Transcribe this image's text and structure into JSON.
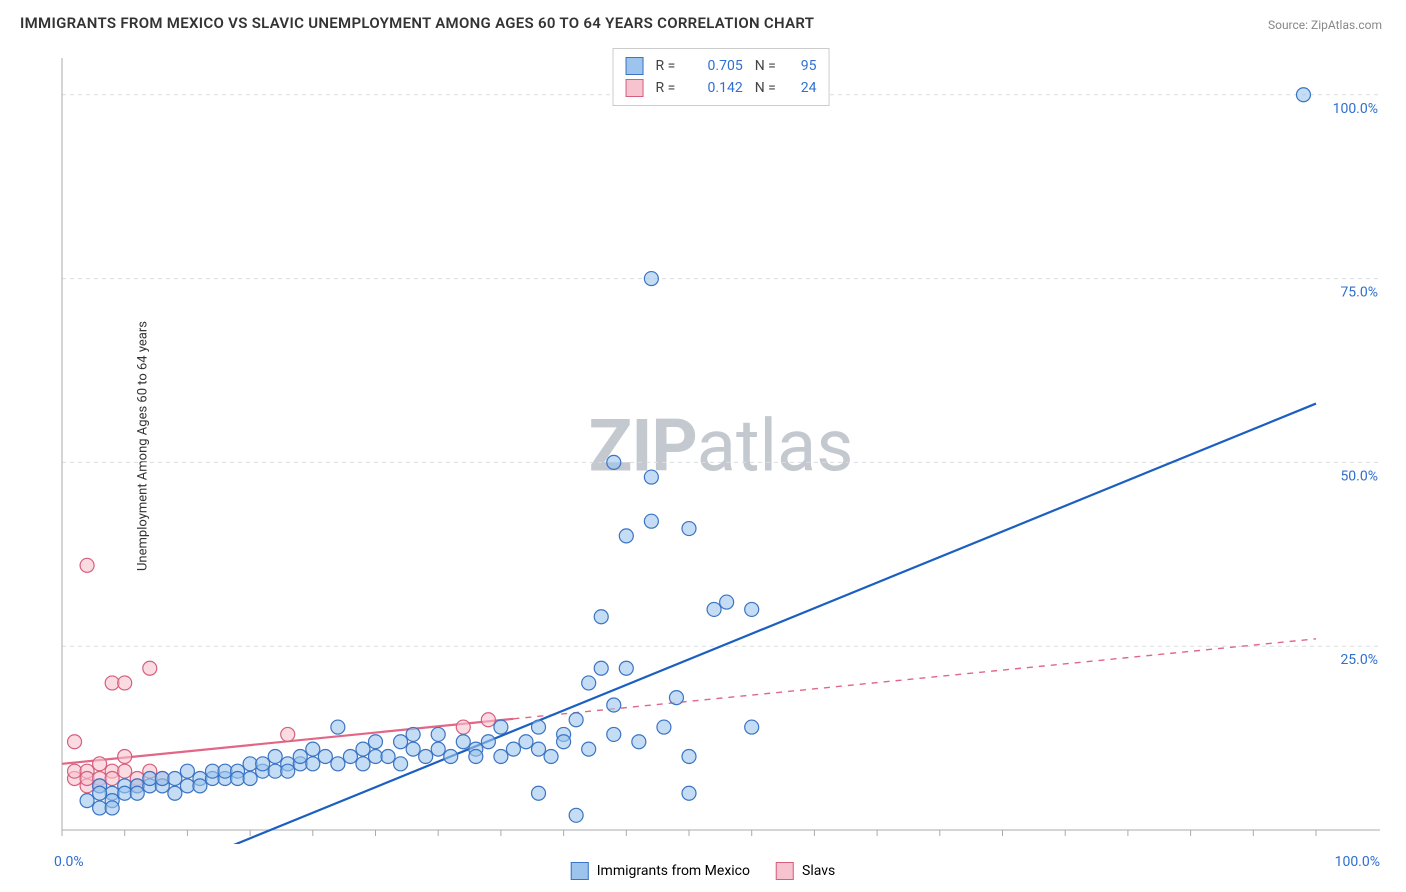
{
  "title": "IMMIGRANTS FROM MEXICO VS SLAVIC UNEMPLOYMENT AMONG AGES 60 TO 64 YEARS CORRELATION CHART",
  "source": "Source: ZipAtlas.com",
  "ylabel": "Unemployment Among Ages 60 to 64 years",
  "watermark_zip": "ZIP",
  "watermark_atlas": "atlas",
  "watermark_color": "#c4c9cf",
  "series": {
    "mexico": {
      "label": "Immigrants from Mexico",
      "r_value": "0.705",
      "n_value": "95",
      "point_fill": "#9cc4ed",
      "point_stroke": "#3b74c4",
      "line_color": "#1b5fc1",
      "line_start": [
        8,
        -6
      ],
      "line_end": [
        100,
        58
      ],
      "points": [
        [
          2,
          4
        ],
        [
          3,
          6
        ],
        [
          4,
          5
        ],
        [
          4,
          4
        ],
        [
          5,
          6
        ],
        [
          5,
          5
        ],
        [
          6,
          6
        ],
        [
          6,
          5
        ],
        [
          7,
          6
        ],
        [
          7,
          7
        ],
        [
          8,
          6
        ],
        [
          8,
          7
        ],
        [
          9,
          5
        ],
        [
          9,
          7
        ],
        [
          10,
          6
        ],
        [
          10,
          8
        ],
        [
          11,
          7
        ],
        [
          11,
          6
        ],
        [
          12,
          7
        ],
        [
          12,
          8
        ],
        [
          13,
          7
        ],
        [
          13,
          8
        ],
        [
          14,
          8
        ],
        [
          14,
          7
        ],
        [
          15,
          7
        ],
        [
          15,
          9
        ],
        [
          16,
          8
        ],
        [
          16,
          9
        ],
        [
          17,
          8
        ],
        [
          17,
          10
        ],
        [
          18,
          9
        ],
        [
          18,
          8
        ],
        [
          19,
          9
        ],
        [
          19,
          10
        ],
        [
          20,
          9
        ],
        [
          20,
          11
        ],
        [
          21,
          10
        ],
        [
          22,
          14
        ],
        [
          22,
          9
        ],
        [
          23,
          10
        ],
        [
          24,
          11
        ],
        [
          24,
          9
        ],
        [
          25,
          10
        ],
        [
          25,
          12
        ],
        [
          26,
          10
        ],
        [
          27,
          12
        ],
        [
          27,
          9
        ],
        [
          28,
          11
        ],
        [
          28,
          13
        ],
        [
          29,
          10
        ],
        [
          30,
          11
        ],
        [
          30,
          13
        ],
        [
          31,
          10
        ],
        [
          32,
          12
        ],
        [
          33,
          11
        ],
        [
          33,
          10
        ],
        [
          34,
          12
        ],
        [
          35,
          10
        ],
        [
          35,
          14
        ],
        [
          36,
          11
        ],
        [
          37,
          12
        ],
        [
          38,
          11
        ],
        [
          38,
          14
        ],
        [
          38,
          5
        ],
        [
          39,
          10
        ],
        [
          40,
          13
        ],
        [
          40,
          12
        ],
        [
          41,
          2
        ],
        [
          41,
          15
        ],
        [
          42,
          20
        ],
        [
          42,
          11
        ],
        [
          43,
          22
        ],
        [
          43,
          29
        ],
        [
          44,
          17
        ],
        [
          44,
          13
        ],
        [
          44,
          50
        ],
        [
          45,
          22
        ],
        [
          45,
          40
        ],
        [
          46,
          12
        ],
        [
          47,
          48
        ],
        [
          47,
          42
        ],
        [
          47,
          75
        ],
        [
          48,
          14
        ],
        [
          49,
          18
        ],
        [
          50,
          10
        ],
        [
          50,
          5
        ],
        [
          52,
          30
        ],
        [
          53,
          31
        ],
        [
          55,
          30
        ],
        [
          55,
          14
        ],
        [
          50,
          41
        ],
        [
          99,
          100
        ],
        [
          3,
          3
        ],
        [
          3,
          5
        ],
        [
          4,
          3
        ]
      ]
    },
    "slavs": {
      "label": "Slavs",
      "r_value": "0.142",
      "n_value": "24",
      "point_fill": "#f6c3ce",
      "point_stroke": "#d65f7e",
      "line_color": "#e26686",
      "line_solid_end_x": 36,
      "line_start": [
        0,
        9
      ],
      "line_end": [
        100,
        26
      ],
      "points": [
        [
          1,
          7
        ],
        [
          1,
          8
        ],
        [
          1,
          12
        ],
        [
          2,
          6
        ],
        [
          2,
          8
        ],
        [
          2,
          7
        ],
        [
          2,
          36
        ],
        [
          3,
          7
        ],
        [
          3,
          9
        ],
        [
          3,
          6
        ],
        [
          4,
          20
        ],
        [
          4,
          8
        ],
        [
          4,
          7
        ],
        [
          5,
          20
        ],
        [
          5,
          8
        ],
        [
          5,
          10
        ],
        [
          6,
          7
        ],
        [
          6,
          6
        ],
        [
          7,
          22
        ],
        [
          7,
          8
        ],
        [
          8,
          7
        ],
        [
          18,
          13
        ],
        [
          32,
          14
        ],
        [
          34,
          15
        ]
      ]
    }
  },
  "axes": {
    "xlim": [
      0,
      100
    ],
    "ylim": [
      0,
      105
    ],
    "x_tick_min_label": "0.0%",
    "x_tick_max_label": "100.0%",
    "y_gridlines": [
      25,
      50,
      75,
      100
    ],
    "y_grid_labels": [
      "25.0%",
      "50.0%",
      "75.0%",
      "100.0%"
    ],
    "grid_color": "#d9dde1",
    "axis_color": "#a8abaf",
    "value_color_mexico": "#2f6fd0",
    "value_color_slavs": "#2f6fd0"
  },
  "legend_labels": {
    "r_prefix": "R =",
    "n_prefix": "N ="
  },
  "marker_radius": 7,
  "marker_opacity": 0.6,
  "line_width": 2.2
}
